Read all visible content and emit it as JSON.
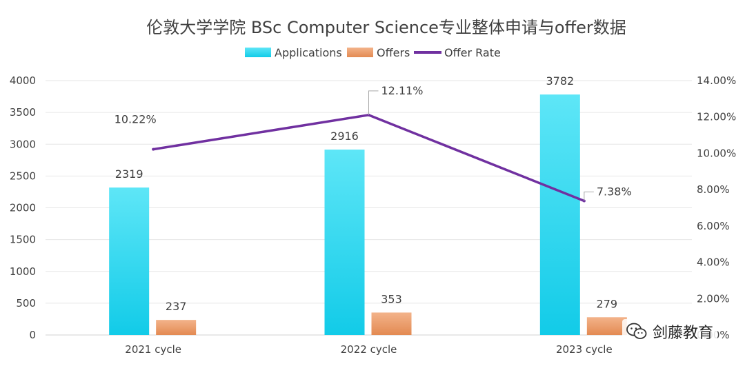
{
  "chart_data": {
    "type": "bar",
    "title": "伦敦大学学院 BSc Computer Science专业整体申请与offer数据",
    "categories": [
      "2021 cycle",
      "2022 cycle",
      "2023 cycle"
    ],
    "series": [
      {
        "name": "Applications",
        "kind": "bar",
        "values": [
          2319,
          2916,
          3782
        ],
        "labels": [
          "2319",
          "2916",
          "3782"
        ],
        "color_top": "#5ee6f7",
        "color_bottom": "#12cbe8"
      },
      {
        "name": "Offers",
        "kind": "bar",
        "values": [
          237,
          353,
          279
        ],
        "labels": [
          "237",
          "353",
          "279"
        ],
        "color_top": "#f3b38a",
        "color_bottom": "#e38a52"
      },
      {
        "name": "Offer Rate",
        "kind": "line",
        "axis": "right",
        "values": [
          10.22,
          12.11,
          7.38
        ],
        "labels": [
          "10.22%",
          "12.11%",
          "7.38%"
        ],
        "color": "#7030a0"
      }
    ],
    "y_left": {
      "min": 0,
      "max": 4000,
      "step": 500,
      "ticks": [
        "0",
        "500",
        "1000",
        "1500",
        "2000",
        "2500",
        "3000",
        "3500",
        "4000"
      ]
    },
    "y_right": {
      "min": 0,
      "max": 14,
      "step": 2,
      "ticks": [
        "0.00%",
        "2.00%",
        "4.00%",
        "6.00%",
        "8.00%",
        "10.00%",
        "12.00%",
        "14.00%"
      ]
    },
    "grid": true,
    "legend_position": "top-center"
  },
  "watermark": {
    "text": "剑藤教育",
    "icon": "wechat-icon"
  }
}
